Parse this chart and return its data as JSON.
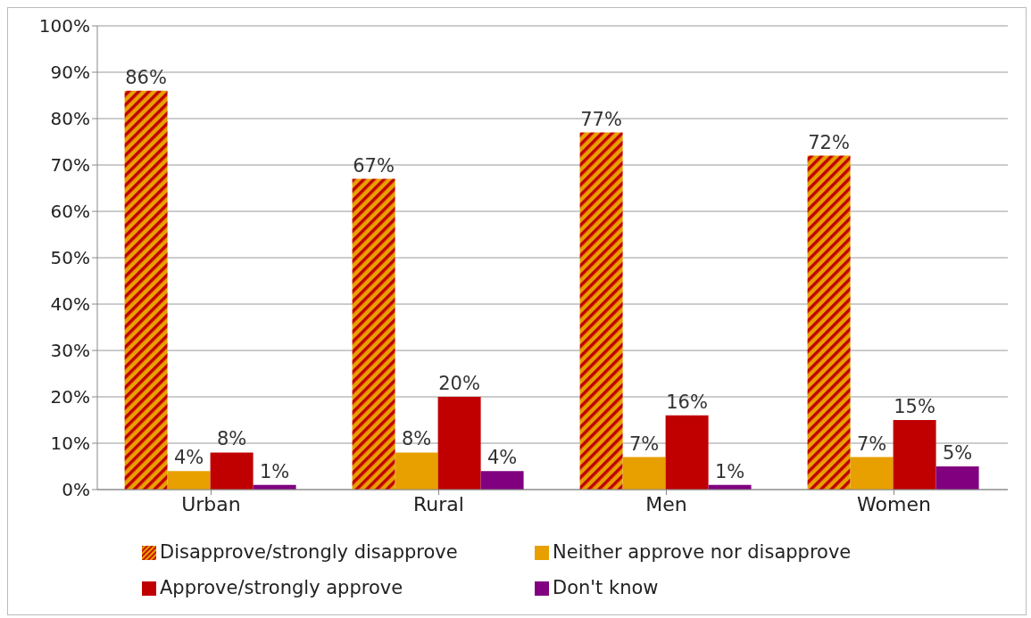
{
  "chart_data": {
    "type": "bar",
    "categories": [
      "Urban",
      "Rural",
      "Men",
      "Women"
    ],
    "series": [
      {
        "name": "Disapprove/strongly disapprove",
        "color": "#e8a000",
        "values": [
          86,
          67,
          77,
          72
        ],
        "value_labels": [
          "86%",
          "67%",
          "77%",
          "72%"
        ]
      },
      {
        "name": "Neither approve nor disapprove",
        "color": "#e8a000",
        "values": [
          4,
          8,
          7,
          7
        ],
        "value_labels": [
          "4%",
          "8%",
          "7%",
          "7%"
        ]
      },
      {
        "name": "Approve/strongly approve",
        "color": "#c00000",
        "values": [
          8,
          20,
          16,
          15
        ],
        "value_labels": [
          "8%",
          "20%",
          "16%",
          "15%"
        ]
      },
      {
        "name": "Don't know",
        "color": "#800080",
        "values": [
          1,
          4,
          1,
          5
        ],
        "value_labels": [
          "1%",
          "4%",
          "1%",
          "5%"
        ]
      }
    ],
    "ylim": [
      0,
      100
    ],
    "yticks": [
      {
        "value": 0,
        "label": "0%"
      },
      {
        "value": 10,
        "label": "10%"
      },
      {
        "value": 20,
        "label": "20%"
      },
      {
        "value": 30,
        "label": "30%"
      },
      {
        "value": 40,
        "label": "40%"
      },
      {
        "value": 50,
        "label": "50%"
      },
      {
        "value": 60,
        "label": "60%"
      },
      {
        "value": 70,
        "label": "70%"
      },
      {
        "value": 80,
        "label": "80%"
      },
      {
        "value": 90,
        "label": "90%"
      },
      {
        "value": 100,
        "label": "100%"
      }
    ],
    "grid": "y",
    "legend": "bottom"
  }
}
